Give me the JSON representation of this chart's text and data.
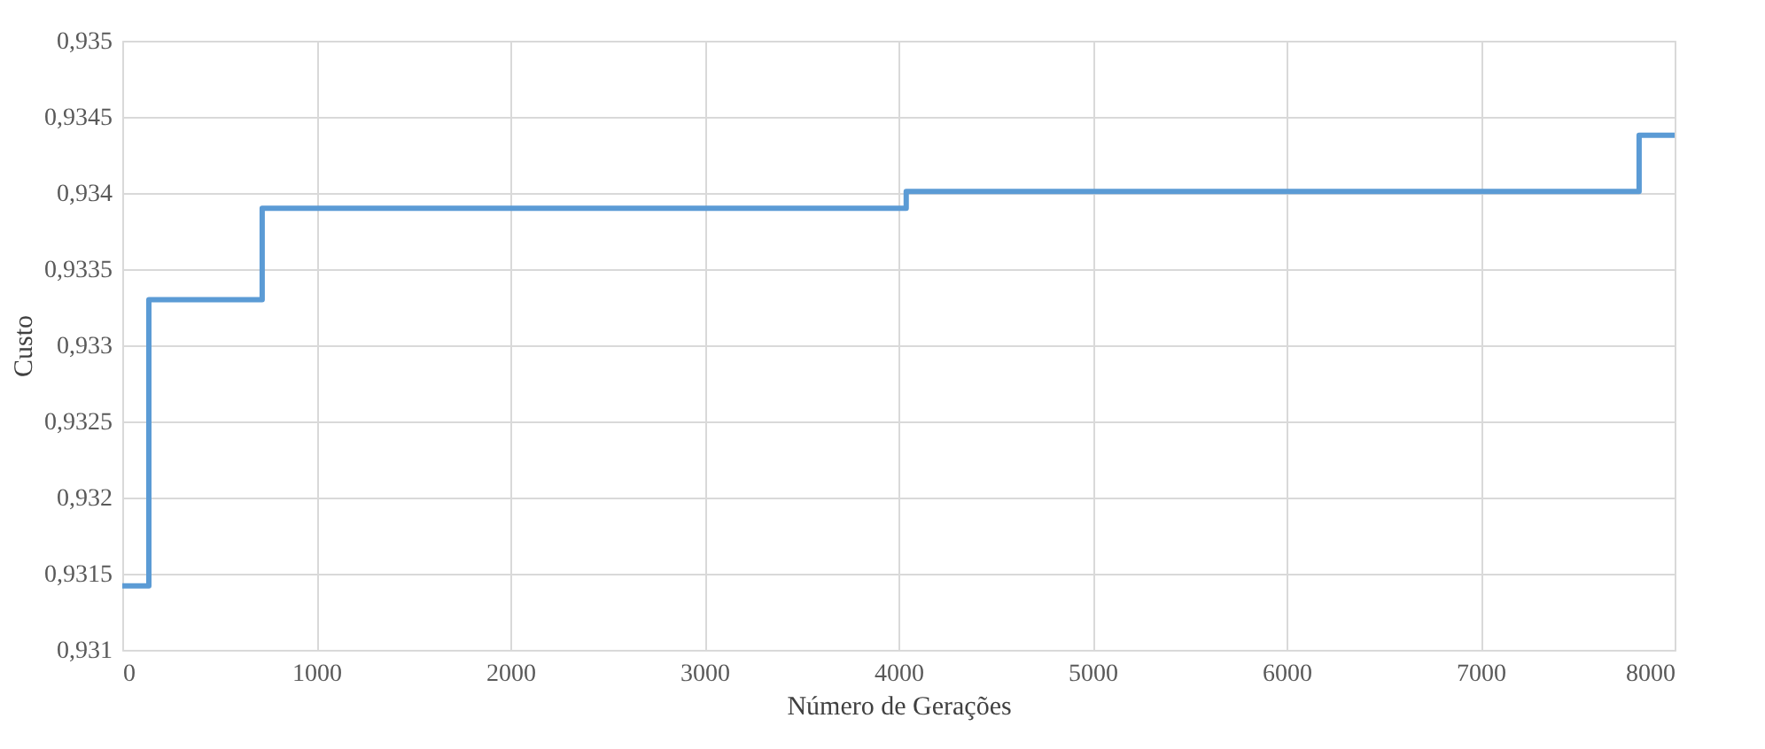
{
  "chart_data": {
    "type": "step",
    "xlabel": "Número de Gerações",
    "ylabel": "Custo",
    "x": [
      0,
      137,
      721,
      4040,
      7817,
      8000
    ],
    "series": [
      {
        "color": "#5b9bd5",
        "values": [
          0.93142,
          0.9333,
          0.9339,
          0.93401,
          0.93438,
          0.93438
        ]
      }
    ],
    "xlim": [
      0,
      8000
    ],
    "xticks": [
      0,
      1000,
      2000,
      3000,
      4000,
      5000,
      6000,
      7000,
      8000
    ],
    "ylim": [
      0.931,
      0.935
    ],
    "yticks": [
      {
        "value": 0.931,
        "label": "0,931"
      },
      {
        "value": 0.9315,
        "label": "0,9315"
      },
      {
        "value": 0.932,
        "label": "0,932"
      },
      {
        "value": 0.9325,
        "label": "0,9325"
      },
      {
        "value": 0.933,
        "label": "0,933"
      },
      {
        "value": 0.9335,
        "label": "0,9335"
      },
      {
        "value": 0.934,
        "label": "0,934"
      },
      {
        "value": 0.9345,
        "label": "0,9345"
      },
      {
        "value": 0.935,
        "label": "0,935"
      }
    ],
    "grid": true,
    "marker": "none",
    "line_style": "solid"
  }
}
